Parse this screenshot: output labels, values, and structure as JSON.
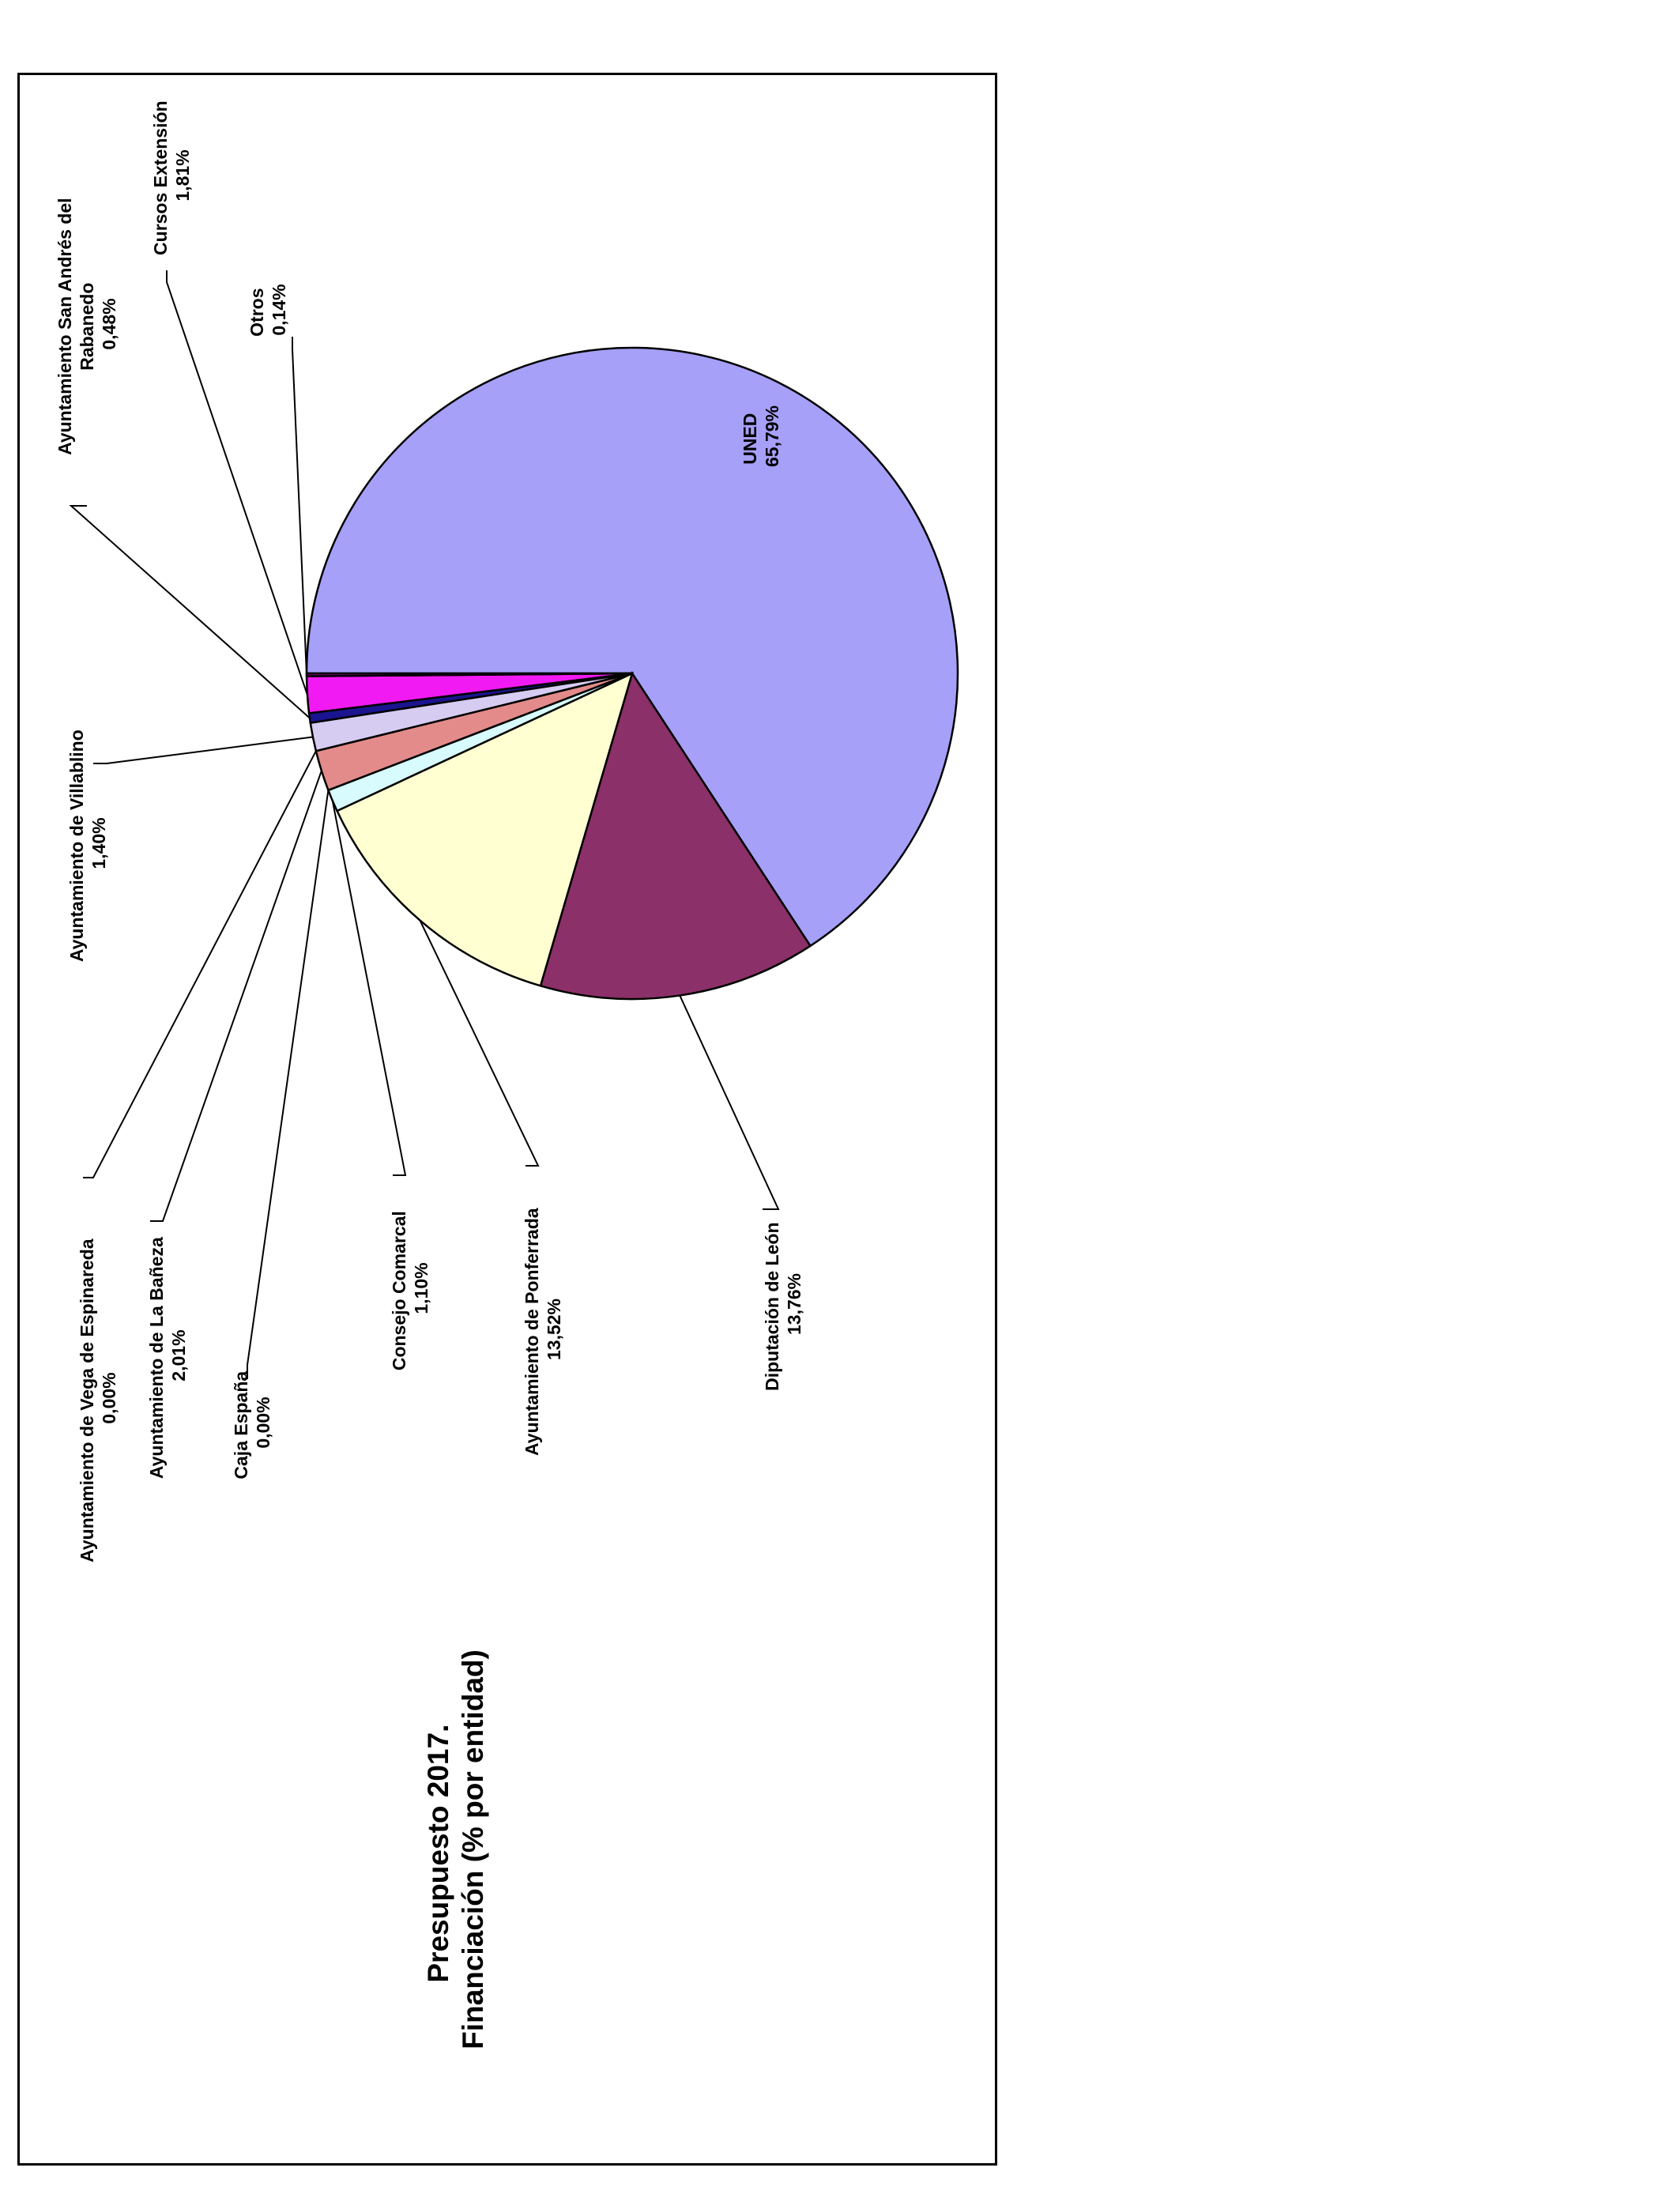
{
  "chart_data": {
    "type": "pie",
    "title_line1": "Presupuesto 2017.",
    "title_line2": "Financiación (% por entidad)",
    "slices": [
      {
        "name_line1": "UNED",
        "name_line2": "",
        "value": 65.79,
        "value_label": "65,79%",
        "color": "#A6A0F8"
      },
      {
        "name_line1": "Diputación de León",
        "name_line2": "",
        "value": 13.76,
        "value_label": "13,76%",
        "color": "#8B3068"
      },
      {
        "name_line1": "Ayuntamiento de Ponferrada",
        "name_line2": "",
        "value": 13.52,
        "value_label": "13,52%",
        "color": "#FFFFD2"
      },
      {
        "name_line1": "Consejo Comarcal",
        "name_line2": "",
        "value": 1.1,
        "value_label": "1,10%",
        "color": "#D8FBFD"
      },
      {
        "name_line1": "Caja España",
        "name_line2": "",
        "value": 0.0,
        "value_label": "0,00%",
        "color": "#000080"
      },
      {
        "name_line1": "Ayuntamiento de La Bañeza",
        "name_line2": "",
        "value": 2.01,
        "value_label": "2,01%",
        "color": "#E38B8B"
      },
      {
        "name_line1": "Ayuntamiento de Vega de Espinareda",
        "name_line2": "",
        "value": 0.0,
        "value_label": "0,00%",
        "color": "#008080"
      },
      {
        "name_line1": "Ayuntamiento de Villablino",
        "name_line2": "",
        "value": 1.4,
        "value_label": "1,40%",
        "color": "#D6CCF2"
      },
      {
        "name_line1": "Ayuntamiento San Andrés del",
        "name_line2": "Rabanedo",
        "value": 0.48,
        "value_label": "0,48%",
        "color": "#1A1490"
      },
      {
        "name_line1": "Cursos Extensión",
        "name_line2": "",
        "value": 1.81,
        "value_label": "1,81%",
        "color": "#F21AF2"
      },
      {
        "name_line1": "Otros",
        "name_line2": "",
        "value": 0.14,
        "value_label": "0,14%",
        "color": "#880088"
      }
    ]
  }
}
